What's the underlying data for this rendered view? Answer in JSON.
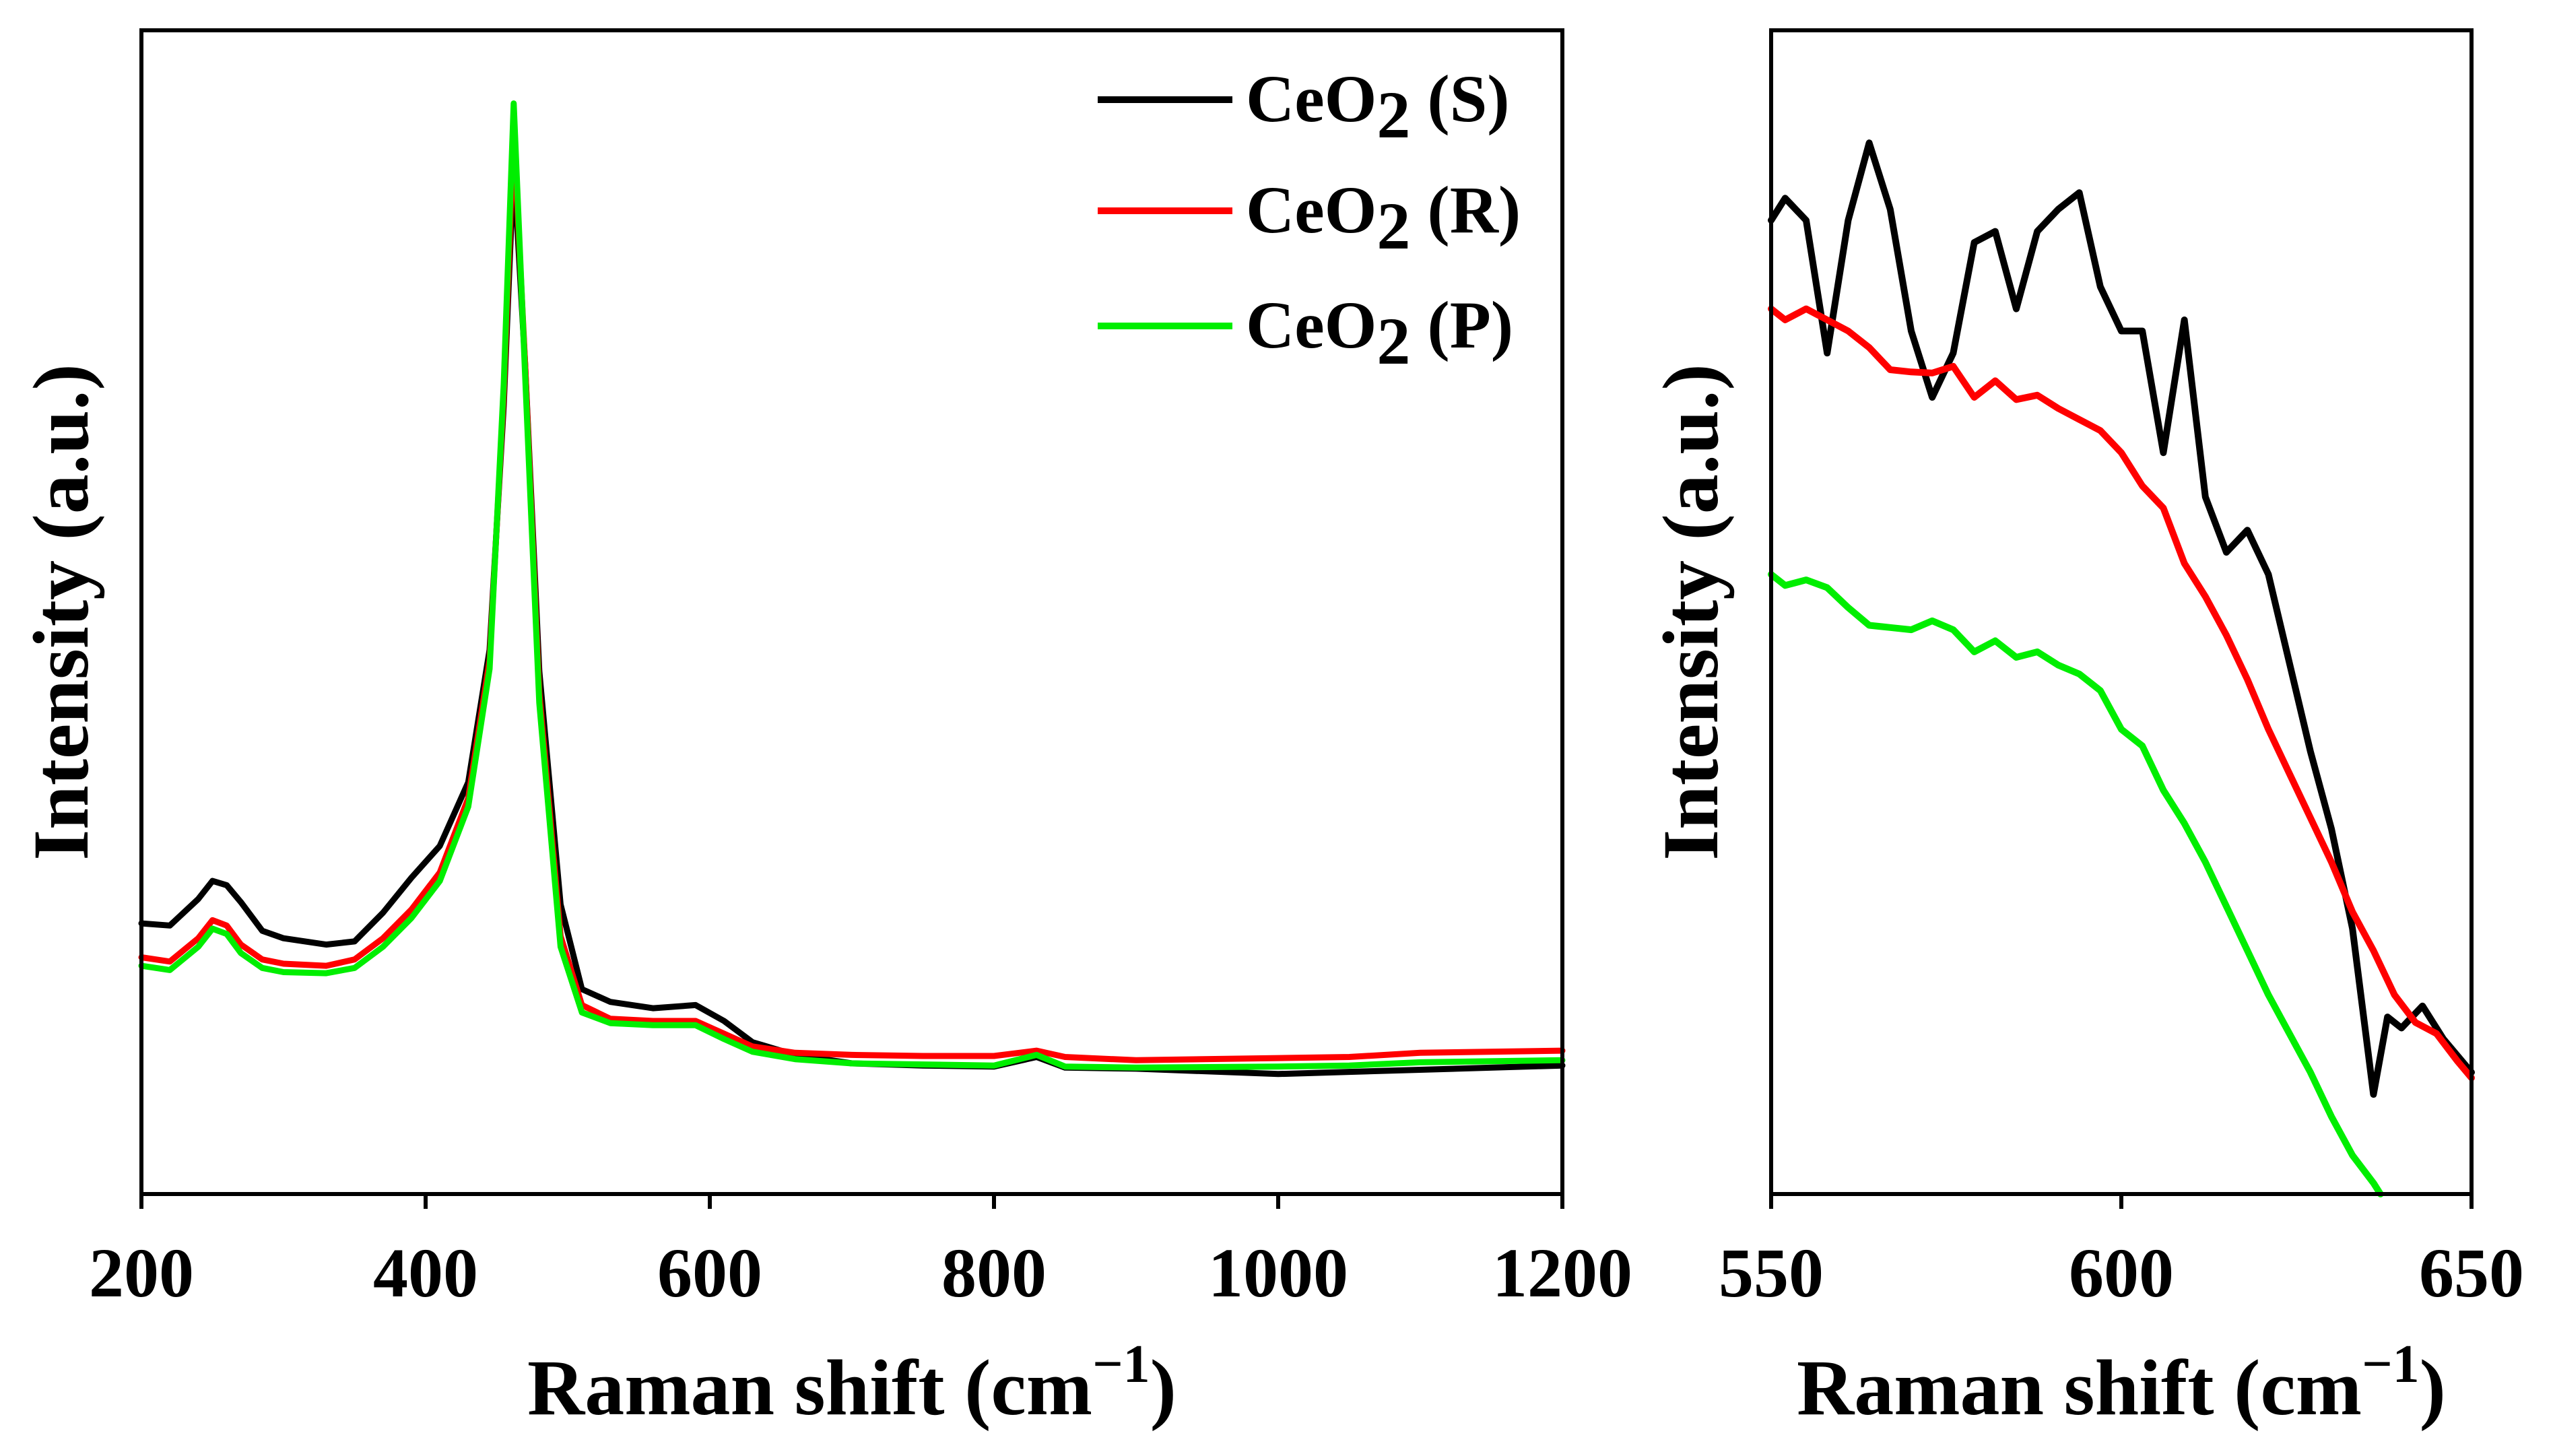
{
  "chart_data": [
    {
      "type": "line",
      "panel": "left",
      "title": "",
      "xlabel": "Raman shift (cm",
      "xlabel_unit_sup": "−1",
      "xlabel_close": ")",
      "ylabel": "Intensity (a.u.)",
      "xlim": [
        200,
        1200
      ],
      "ylim": [
        0,
        1
      ],
      "xticks": [
        200,
        400,
        600,
        800,
        1000,
        1200
      ],
      "xtick_labels": [
        "200",
        "400",
        "600",
        "800",
        "1000",
        "1200"
      ],
      "yticks": [],
      "grid": false,
      "legend_position": "top-right",
      "series": [
        {
          "name": "CeO2 (S)",
          "legend_base": "CeO",
          "legend_sub": "2",
          "legend_tail": " (S)",
          "color": "#000000",
          "x": [
            200,
            220,
            240,
            250,
            260,
            270,
            285,
            300,
            330,
            350,
            370,
            390,
            410,
            430,
            445,
            455,
            462,
            470,
            480,
            495,
            510,
            530,
            560,
            590,
            610,
            630,
            660,
            700,
            750,
            800,
            830,
            850,
            900,
            1000,
            1050,
            1100,
            1200
          ],
          "y": [
            0.212,
            0.21,
            0.235,
            0.252,
            0.248,
            0.232,
            0.205,
            0.198,
            0.192,
            0.195,
            0.222,
            0.255,
            0.285,
            0.345,
            0.47,
            0.7,
            0.928,
            0.74,
            0.45,
            0.23,
            0.15,
            0.138,
            0.132,
            0.135,
            0.12,
            0.1,
            0.088,
            0.08,
            0.078,
            0.077,
            0.086,
            0.076,
            0.075,
            0.07,
            0.072,
            0.074,
            0.078
          ]
        },
        {
          "name": "CeO2 (R)",
          "legend_base": "CeO",
          "legend_sub": "2",
          "legend_tail": " (R)",
          "color": "#ff0000",
          "x": [
            200,
            220,
            240,
            250,
            260,
            270,
            285,
            300,
            330,
            350,
            370,
            390,
            410,
            430,
            445,
            455,
            462,
            470,
            480,
            495,
            510,
            530,
            560,
            590,
            610,
            630,
            660,
            700,
            750,
            800,
            830,
            850,
            900,
            1000,
            1050,
            1100,
            1200
          ],
          "y": [
            0.18,
            0.176,
            0.198,
            0.215,
            0.21,
            0.192,
            0.178,
            0.174,
            0.172,
            0.178,
            0.198,
            0.225,
            0.26,
            0.33,
            0.46,
            0.71,
            0.96,
            0.74,
            0.43,
            0.2,
            0.135,
            0.122,
            0.12,
            0.12,
            0.108,
            0.096,
            0.09,
            0.088,
            0.087,
            0.087,
            0.092,
            0.086,
            0.083,
            0.085,
            0.086,
            0.09,
            0.092
          ]
        },
        {
          "name": "CeO2 (P)",
          "legend_base": "CeO",
          "legend_sub": "2",
          "legend_tail": " (P)",
          "color": "#00ee00",
          "x": [
            200,
            220,
            240,
            250,
            260,
            270,
            285,
            300,
            330,
            350,
            370,
            390,
            410,
            430,
            445,
            455,
            462,
            470,
            480,
            495,
            510,
            530,
            560,
            590,
            610,
            630,
            660,
            700,
            750,
            800,
            830,
            850,
            900,
            1000,
            1050,
            1100,
            1200
          ],
          "y": [
            0.172,
            0.168,
            0.19,
            0.207,
            0.202,
            0.184,
            0.17,
            0.166,
            0.165,
            0.17,
            0.19,
            0.217,
            0.252,
            0.322,
            0.452,
            0.72,
            0.985,
            0.73,
            0.42,
            0.19,
            0.128,
            0.118,
            0.116,
            0.116,
            0.103,
            0.091,
            0.084,
            0.08,
            0.079,
            0.078,
            0.088,
            0.077,
            0.076,
            0.077,
            0.078,
            0.081,
            0.083
          ]
        }
      ]
    },
    {
      "type": "line",
      "panel": "right",
      "title": "",
      "xlabel": "Raman shift (cm",
      "xlabel_unit_sup": "−1",
      "xlabel_close": ")",
      "ylabel": "Intensity (a.u.)",
      "xlim": [
        550,
        650
      ],
      "ylim": [
        0,
        1
      ],
      "xticks": [
        550,
        600,
        650
      ],
      "xtick_labels": [
        "550",
        "600",
        "650"
      ],
      "yticks": [],
      "grid": false,
      "series": [
        {
          "name": "CeO2 (S)",
          "color": "#000000",
          "x": [
            550,
            552,
            555,
            558,
            561,
            564,
            567,
            570,
            573,
            576,
            579,
            582,
            585,
            588,
            591,
            594,
            597,
            600,
            603,
            606,
            609,
            612,
            615,
            618,
            621,
            624,
            627,
            630,
            633,
            636,
            638,
            640,
            643,
            646,
            650
          ],
          "y": [
            0.88,
            0.9,
            0.88,
            0.76,
            0.88,
            0.95,
            0.89,
            0.78,
            0.72,
            0.76,
            0.86,
            0.87,
            0.8,
            0.87,
            0.89,
            0.905,
            0.82,
            0.78,
            0.78,
            0.67,
            0.79,
            0.63,
            0.58,
            0.6,
            0.56,
            0.48,
            0.4,
            0.33,
            0.24,
            0.09,
            0.16,
            0.15,
            0.17,
            0.14,
            0.11
          ]
        },
        {
          "name": "CeO2 (R)",
          "color": "#ff0000",
          "x": [
            550,
            552,
            555,
            558,
            561,
            564,
            567,
            570,
            573,
            576,
            579,
            582,
            585,
            588,
            591,
            594,
            597,
            600,
            603,
            606,
            609,
            612,
            615,
            618,
            621,
            624,
            627,
            630,
            633,
            636,
            639,
            642,
            645,
            648,
            650
          ],
          "y": [
            0.8,
            0.79,
            0.8,
            0.79,
            0.78,
            0.765,
            0.745,
            0.743,
            0.742,
            0.748,
            0.72,
            0.735,
            0.718,
            0.722,
            0.71,
            0.7,
            0.69,
            0.67,
            0.64,
            0.62,
            0.57,
            0.54,
            0.505,
            0.465,
            0.42,
            0.38,
            0.34,
            0.3,
            0.255,
            0.22,
            0.18,
            0.155,
            0.145,
            0.12,
            0.105
          ]
        },
        {
          "name": "CeO2 (P)",
          "color": "#00ee00",
          "x": [
            550,
            552,
            555,
            558,
            561,
            564,
            567,
            570,
            573,
            576,
            579,
            582,
            585,
            588,
            591,
            594,
            597,
            600,
            603,
            606,
            609,
            612,
            615,
            618,
            621,
            624,
            627,
            630,
            633,
            636,
            637
          ],
          "y": [
            0.56,
            0.55,
            0.555,
            0.548,
            0.53,
            0.514,
            0.512,
            0.51,
            0.518,
            0.51,
            0.49,
            0.5,
            0.485,
            0.49,
            0.478,
            0.47,
            0.455,
            0.42,
            0.405,
            0.365,
            0.335,
            0.3,
            0.26,
            0.22,
            0.18,
            0.145,
            0.11,
            0.07,
            0.035,
            0.01,
            0.0
          ]
        }
      ]
    }
  ]
}
